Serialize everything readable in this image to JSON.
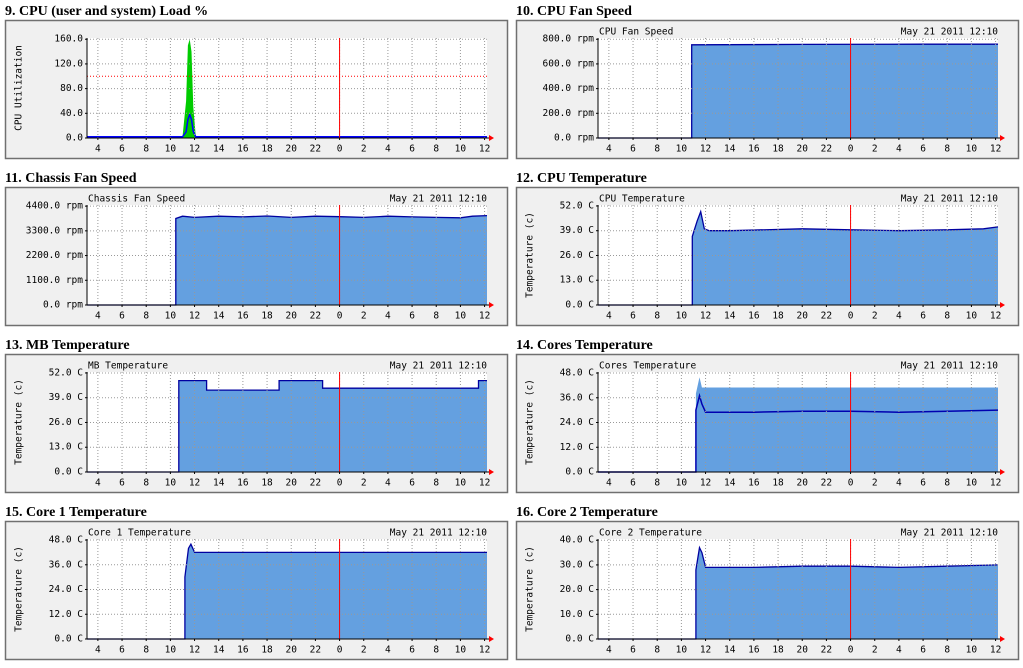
{
  "chart_data": [
    {
      "type": "area",
      "title": "9. CPU (user and system) Load %",
      "ylabel": "CPU Utilization",
      "x": [
        3.1,
        11.0,
        11.3,
        11.45,
        11.6,
        11.75,
        11.9,
        12.1,
        36.2
      ],
      "series": [
        {
          "style": "area",
          "color": "#00cc00",
          "values": [
            2,
            2,
            60,
            150,
            160,
            140,
            50,
            2,
            2
          ]
        },
        {
          "style": "line",
          "color": "#0000ff",
          "values": [
            2,
            2,
            10,
            30,
            38,
            30,
            10,
            2,
            2
          ]
        }
      ],
      "xlim": [
        3.1,
        36.2
      ],
      "xticks": [
        4,
        6,
        8,
        10,
        12,
        14,
        16,
        18,
        20,
        22,
        {
          "value": 24,
          "label": "0"
        },
        {
          "value": 26,
          "label": "2"
        },
        {
          "value": 28,
          "label": "4"
        },
        {
          "value": 30,
          "label": "6"
        },
        {
          "value": 32,
          "label": "8"
        },
        {
          "value": 34,
          "label": "10"
        },
        {
          "value": 36,
          "label": "12"
        }
      ],
      "ylim": [
        0,
        162
      ],
      "yticks": [
        {
          "value": 0,
          "label": "0.0"
        },
        {
          "value": 40,
          "label": "40.0"
        },
        {
          "value": 80,
          "label": "80.0"
        },
        {
          "value": 120,
          "label": "120.0"
        },
        {
          "value": 160,
          "label": "160.0"
        }
      ],
      "vlines": [
        24
      ],
      "hlines": [
        100
      ],
      "grid": true
    },
    {
      "type": "area",
      "title": "10. CPU Fan Speed",
      "header": "CPU Fan Speed",
      "date": "May 21 2011 12:10",
      "x": [
        3.1,
        10.85,
        10.85,
        20,
        30,
        36.2
      ],
      "series": [
        {
          "style": "area",
          "color": "#64a0e0",
          "line_color": "#0000a0",
          "values": [
            0,
            0,
            755,
            758,
            760,
            760
          ]
        }
      ],
      "xlim": [
        3.1,
        36.2
      ],
      "xticks": [
        4,
        6,
        8,
        10,
        12,
        14,
        16,
        18,
        20,
        22,
        {
          "value": 24,
          "label": "0"
        },
        {
          "value": 26,
          "label": "2"
        },
        {
          "value": 28,
          "label": "4"
        },
        {
          "value": 30,
          "label": "6"
        },
        {
          "value": 32,
          "label": "8"
        },
        {
          "value": 34,
          "label": "10"
        },
        {
          "value": 36,
          "label": "12"
        }
      ],
      "ylim": [
        0,
        810
      ],
      "yticks": [
        {
          "value": 0,
          "label": "0.0 rpm"
        },
        {
          "value": 200,
          "label": "200.0 rpm"
        },
        {
          "value": 400,
          "label": "400.0 rpm"
        },
        {
          "value": 600,
          "label": "600.0 rpm"
        },
        {
          "value": 800,
          "label": "800.0 rpm"
        }
      ],
      "vlines": [
        24
      ],
      "grid": true
    },
    {
      "type": "area",
      "title": "11. Chassis Fan Speed",
      "header": "Chassis Fan Speed",
      "date": "May 21 2011 12:10",
      "x": [
        3.1,
        10.45,
        10.45,
        11,
        12,
        14,
        16,
        18,
        20,
        22,
        24,
        26,
        28,
        30,
        32,
        34,
        35,
        36.2
      ],
      "series": [
        {
          "style": "area",
          "color": "#64a0e0",
          "line_color": "#0000a0",
          "values": [
            0,
            0,
            3850,
            3950,
            3900,
            3950,
            3920,
            3960,
            3900,
            3950,
            3930,
            3900,
            3950,
            3920,
            3900,
            3880,
            3950,
            3980
          ]
        }
      ],
      "xlim": [
        3.1,
        36.2
      ],
      "xticks": [
        4,
        6,
        8,
        10,
        12,
        14,
        16,
        18,
        20,
        22,
        {
          "value": 24,
          "label": "0"
        },
        {
          "value": 26,
          "label": "2"
        },
        {
          "value": 28,
          "label": "4"
        },
        {
          "value": 30,
          "label": "6"
        },
        {
          "value": 32,
          "label": "8"
        },
        {
          "value": 34,
          "label": "10"
        },
        {
          "value": 36,
          "label": "12"
        }
      ],
      "ylim": [
        0,
        4450
      ],
      "yticks": [
        {
          "value": 0,
          "label": "0.0 rpm"
        },
        {
          "value": 1100,
          "label": "1100.0 rpm"
        },
        {
          "value": 2200,
          "label": "2200.0 rpm"
        },
        {
          "value": 3300,
          "label": "3300.0 rpm"
        },
        {
          "value": 4400,
          "label": "4400.0 rpm"
        }
      ],
      "vlines": [
        24
      ],
      "grid": true
    },
    {
      "type": "area",
      "title": "12. CPU Temperature",
      "header": "CPU Temperature",
      "date": "May 21 2011 12:10",
      "ylabel": "Temperature (c)",
      "x": [
        3.1,
        10.9,
        10.9,
        11.3,
        11.6,
        11.9,
        12.3,
        14,
        20,
        24,
        28,
        32,
        35,
        36.2
      ],
      "series": [
        {
          "style": "area",
          "color": "#64a0e0",
          "line_color": "#0000a0",
          "values": [
            0,
            0,
            36,
            44,
            49,
            40,
            39,
            39,
            40,
            39.5,
            39,
            39.5,
            40,
            41
          ]
        }
      ],
      "xlim": [
        3.1,
        36.2
      ],
      "xticks": [
        4,
        6,
        8,
        10,
        12,
        14,
        16,
        18,
        20,
        22,
        {
          "value": 24,
          "label": "0"
        },
        {
          "value": 26,
          "label": "2"
        },
        {
          "value": 28,
          "label": "4"
        },
        {
          "value": 30,
          "label": "6"
        },
        {
          "value": 32,
          "label": "8"
        },
        {
          "value": 34,
          "label": "10"
        },
        {
          "value": 36,
          "label": "12"
        }
      ],
      "ylim": [
        0,
        52.5
      ],
      "yticks": [
        {
          "value": 0,
          "label": "0.0 C"
        },
        {
          "value": 13,
          "label": "13.0 C"
        },
        {
          "value": 26,
          "label": "26.0 C"
        },
        {
          "value": 39,
          "label": "39.0 C"
        },
        {
          "value": 52,
          "label": "52.0 C"
        }
      ],
      "vlines": [
        24
      ],
      "grid": true
    },
    {
      "type": "area",
      "title": "13. MB Temperature",
      "header": "MB Temperature",
      "date": "May 21 2011 12:10",
      "ylabel": "Temperature (c)",
      "x": [
        3.1,
        10.7,
        10.7,
        13,
        13,
        19,
        19,
        22.6,
        22.6,
        35.5,
        35.5,
        36.2
      ],
      "series": [
        {
          "style": "area",
          "color": "#64a0e0",
          "line_color": "#0000a0",
          "values": [
            0,
            0,
            48,
            48,
            43,
            43,
            48,
            48,
            44,
            44,
            48,
            48
          ]
        }
      ],
      "xlim": [
        3.1,
        36.2
      ],
      "xticks": [
        4,
        6,
        8,
        10,
        12,
        14,
        16,
        18,
        20,
        22,
        {
          "value": 24,
          "label": "0"
        },
        {
          "value": 26,
          "label": "2"
        },
        {
          "value": 28,
          "label": "4"
        },
        {
          "value": 30,
          "label": "6"
        },
        {
          "value": 32,
          "label": "8"
        },
        {
          "value": 34,
          "label": "10"
        },
        {
          "value": 36,
          "label": "12"
        }
      ],
      "ylim": [
        0,
        52.5
      ],
      "yticks": [
        {
          "value": 0,
          "label": "0.0 C"
        },
        {
          "value": 13,
          "label": "13.0 C"
        },
        {
          "value": 26,
          "label": "26.0 C"
        },
        {
          "value": 39,
          "label": "39.0 C"
        },
        {
          "value": 52,
          "label": "52.0 C"
        }
      ],
      "vlines": [
        24
      ],
      "grid": true
    },
    {
      "type": "area",
      "title": "14. Cores Temperature",
      "header": "Cores Temperature",
      "date": "May 21 2011 12:10",
      "ylabel": "Temperature (c)",
      "x": [
        3.1,
        11.2,
        11.2,
        11.5,
        11.7,
        12.0,
        12.4,
        16,
        20,
        24,
        28,
        32,
        36.2
      ],
      "series": [
        {
          "style": "area",
          "color": "#64a0e0",
          "values": [
            0,
            0,
            38,
            46,
            41,
            41,
            41,
            41,
            41,
            41,
            41,
            41,
            41
          ]
        },
        {
          "style": "line",
          "color": "#0000b0",
          "values": [
            0,
            0,
            30,
            37,
            33,
            29,
            29,
            29,
            29.5,
            29.5,
            29,
            29.5,
            30
          ]
        }
      ],
      "xlim": [
        3.1,
        36.2
      ],
      "xticks": [
        4,
        6,
        8,
        10,
        12,
        14,
        16,
        18,
        20,
        22,
        {
          "value": 24,
          "label": "0"
        },
        {
          "value": 26,
          "label": "2"
        },
        {
          "value": 28,
          "label": "4"
        },
        {
          "value": 30,
          "label": "6"
        },
        {
          "value": 32,
          "label": "8"
        },
        {
          "value": 34,
          "label": "10"
        },
        {
          "value": 36,
          "label": "12"
        }
      ],
      "ylim": [
        0,
        48.5
      ],
      "yticks": [
        {
          "value": 0,
          "label": "0.0 C"
        },
        {
          "value": 12,
          "label": "12.0 C"
        },
        {
          "value": 24,
          "label": "24.0 C"
        },
        {
          "value": 36,
          "label": "36.0 C"
        },
        {
          "value": 48,
          "label": "48.0 C"
        }
      ],
      "vlines": [
        24
      ],
      "grid": true
    },
    {
      "type": "area",
      "title": "15. Core 1 Temperature",
      "header": "Core 1 Temperature",
      "date": "May 21 2011 12:10",
      "ylabel": "Temperature (c)",
      "x": [
        3.1,
        11.2,
        11.2,
        11.5,
        11.7,
        12.0,
        36.2
      ],
      "series": [
        {
          "style": "area",
          "color": "#64a0e0",
          "line_color": "#0000a0",
          "values": [
            0,
            0,
            30,
            44,
            46,
            42,
            42
          ]
        }
      ],
      "xlim": [
        3.1,
        36.2
      ],
      "xticks": [
        4,
        6,
        8,
        10,
        12,
        14,
        16,
        18,
        20,
        22,
        {
          "value": 24,
          "label": "0"
        },
        {
          "value": 26,
          "label": "2"
        },
        {
          "value": 28,
          "label": "4"
        },
        {
          "value": 30,
          "label": "6"
        },
        {
          "value": 32,
          "label": "8"
        },
        {
          "value": 34,
          "label": "10"
        },
        {
          "value": 36,
          "label": "12"
        }
      ],
      "ylim": [
        0,
        48.5
      ],
      "yticks": [
        {
          "value": 0,
          "label": "0.0 C"
        },
        {
          "value": 12,
          "label": "12.0 C"
        },
        {
          "value": 24,
          "label": "24.0 C"
        },
        {
          "value": 36,
          "label": "36.0 C"
        },
        {
          "value": 48,
          "label": "48.0 C"
        }
      ],
      "vlines": [
        24
      ],
      "grid": true
    },
    {
      "type": "area",
      "title": "16. Core 2 Temperature",
      "header": "Core 2 Temperature",
      "date": "May 21 2011 12:10",
      "ylabel": "Temperature (c)",
      "x": [
        3.1,
        11.2,
        11.2,
        11.5,
        11.7,
        12.0,
        16,
        20,
        24,
        28,
        32,
        36.2
      ],
      "series": [
        {
          "style": "area",
          "color": "#64a0e0",
          "line_color": "#0000a0",
          "values": [
            0,
            0,
            28,
            37,
            35,
            29,
            29,
            29.5,
            29.5,
            29,
            29.5,
            30
          ]
        }
      ],
      "xlim": [
        3.1,
        36.2
      ],
      "xticks": [
        4,
        6,
        8,
        10,
        12,
        14,
        16,
        18,
        20,
        22,
        {
          "value": 24,
          "label": "0"
        },
        {
          "value": 26,
          "label": "2"
        },
        {
          "value": 28,
          "label": "4"
        },
        {
          "value": 30,
          "label": "6"
        },
        {
          "value": 32,
          "label": "8"
        },
        {
          "value": 34,
          "label": "10"
        },
        {
          "value": 36,
          "label": "12"
        }
      ],
      "ylim": [
        0,
        40.5
      ],
      "yticks": [
        {
          "value": 0,
          "label": "0.0 C"
        },
        {
          "value": 10,
          "label": "10.0 C"
        },
        {
          "value": 20,
          "label": "20.0 C"
        },
        {
          "value": 30,
          "label": "30.0 C"
        },
        {
          "value": 40,
          "label": "40.0 C"
        }
      ],
      "vlines": [
        24
      ],
      "grid": true
    }
  ]
}
